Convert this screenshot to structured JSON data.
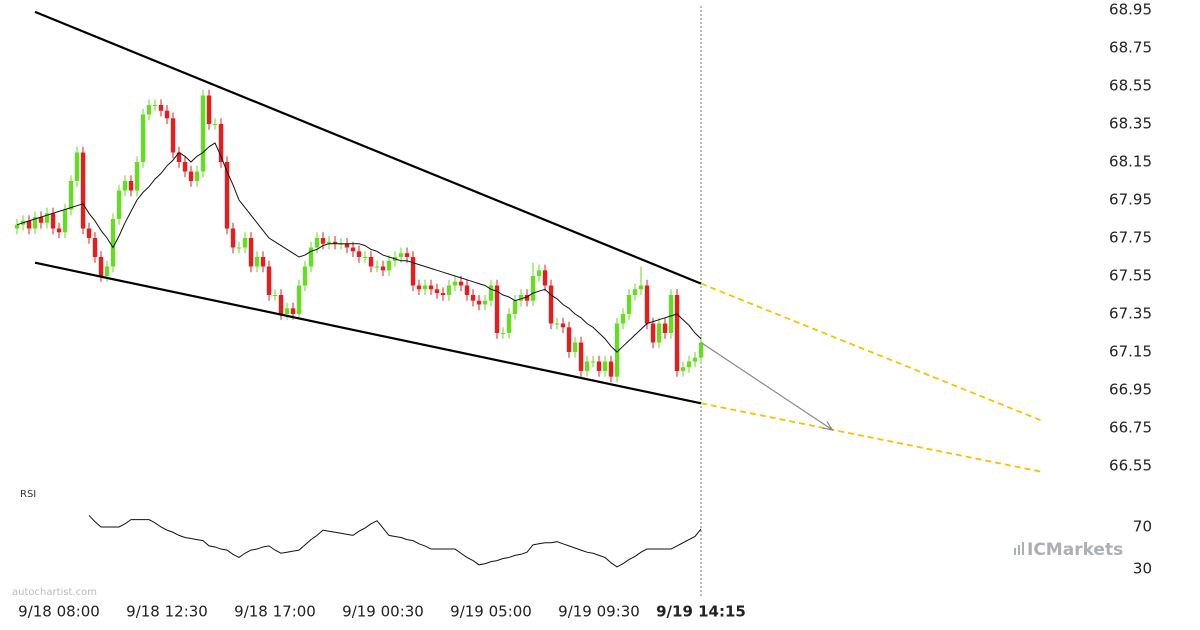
{
  "chart_data": {
    "type": "candlestick",
    "categories": [
      null,
      null,
      null,
      null,
      null,
      null,
      null,
      "9/18 08:00",
      null,
      null,
      null,
      null,
      null,
      null,
      null,
      null,
      null,
      null,
      null,
      null,
      null,
      null,
      null,
      null,
      null,
      "9/18 12:30",
      null,
      null,
      null,
      null,
      null,
      null,
      null,
      null,
      null,
      null,
      null,
      null,
      null,
      null,
      null,
      null,
      null,
      "9/18 17:00",
      null,
      null,
      null,
      null,
      null,
      null,
      null,
      null,
      null,
      null,
      null,
      null,
      null,
      null,
      null,
      null,
      null,
      "9/19 00:30",
      null,
      null,
      null,
      null,
      null,
      null,
      null,
      null,
      null,
      null,
      null,
      null,
      null,
      null,
      null,
      null,
      null,
      "9/19 05:00",
      null,
      null,
      null,
      null,
      null,
      null,
      null,
      null,
      null,
      null,
      null,
      null,
      null,
      null,
      null,
      null,
      null,
      "9/19 09:30",
      null,
      null,
      null,
      null,
      null,
      null,
      null,
      null,
      null,
      null,
      null,
      null,
      null,
      null,
      null,
      null,
      "9/19 14:15"
    ],
    "open": [
      67.8,
      67.82,
      67.84,
      67.8,
      67.86,
      67.83,
      67.88,
      67.8,
      67.78,
      67.9,
      68.05,
      68.2,
      67.8,
      67.75,
      67.65,
      67.55,
      67.6,
      67.85,
      68.0,
      68.05,
      68.0,
      68.15,
      68.4,
      68.45,
      68.45,
      68.42,
      68.38,
      68.2,
      68.15,
      68.1,
      68.05,
      68.1,
      68.5,
      68.35,
      68.35,
      68.15,
      67.8,
      67.7,
      67.7,
      67.75,
      67.6,
      67.65,
      67.6,
      67.45,
      67.45,
      67.35,
      67.38,
      67.35,
      67.5,
      67.6,
      67.7,
      67.75,
      67.72,
      67.73,
      67.72,
      67.72,
      67.7,
      67.68,
      67.65,
      67.65,
      67.6,
      67.6,
      67.58,
      67.63,
      67.65,
      67.67,
      67.65,
      67.5,
      67.48,
      67.5,
      67.48,
      67.46,
      67.45,
      67.5,
      67.52,
      67.5,
      67.45,
      67.42,
      67.4,
      67.42,
      67.5,
      67.25,
      67.25,
      67.35,
      67.42,
      67.45,
      67.42,
      67.55,
      67.58,
      67.5,
      67.3,
      67.3,
      67.28,
      67.15,
      67.2,
      67.05,
      67.1,
      67.1,
      67.05,
      67.1,
      67.02,
      67.3,
      67.35,
      67.45,
      67.48,
      67.5,
      67.3,
      67.2,
      67.3,
      67.25,
      67.45,
      67.05,
      67.07,
      67.1,
      67.12
    ],
    "high": [
      67.85,
      67.87,
      67.87,
      67.89,
      67.89,
      67.91,
      67.91,
      67.83,
      67.93,
      68.08,
      68.23,
      68.23,
      67.83,
      67.78,
      67.68,
      67.63,
      67.88,
      68.03,
      68.08,
      68.08,
      68.18,
      68.43,
      68.48,
      68.48,
      68.48,
      68.45,
      68.41,
      68.23,
      68.18,
      68.13,
      68.13,
      68.53,
      68.53,
      68.38,
      68.38,
      68.18,
      67.83,
      67.73,
      67.78,
      67.78,
      67.68,
      67.68,
      67.63,
      67.48,
      67.48,
      67.41,
      67.41,
      67.53,
      67.63,
      67.73,
      67.78,
      67.78,
      67.76,
      67.76,
      67.75,
      67.75,
      67.73,
      67.71,
      67.68,
      67.68,
      67.63,
      67.63,
      67.66,
      67.68,
      67.7,
      67.7,
      67.68,
      67.53,
      67.53,
      67.53,
      67.51,
      67.49,
      67.53,
      67.55,
      67.55,
      67.53,
      67.48,
      67.45,
      67.45,
      67.53,
      67.53,
      67.28,
      67.38,
      67.45,
      67.48,
      67.48,
      67.62,
      67.61,
      67.61,
      67.53,
      67.33,
      67.33,
      67.31,
      67.23,
      67.23,
      67.13,
      67.13,
      67.13,
      67.13,
      67.13,
      67.33,
      67.38,
      67.48,
      67.51,
      67.6,
      67.53,
      67.33,
      67.33,
      67.33,
      67.48,
      67.48,
      67.1,
      67.13,
      67.15,
      67.23
    ],
    "low": [
      67.77,
      67.79,
      67.77,
      67.77,
      67.8,
      67.8,
      67.77,
      67.75,
      67.75,
      67.87,
      68.02,
      67.77,
      67.72,
      67.62,
      67.52,
      67.52,
      67.57,
      67.82,
      67.97,
      67.97,
      67.97,
      68.12,
      68.37,
      68.42,
      68.39,
      68.35,
      68.17,
      68.12,
      68.07,
      68.02,
      68.02,
      68.07,
      68.32,
      68.32,
      68.12,
      67.77,
      67.67,
      67.67,
      67.67,
      67.57,
      67.57,
      67.57,
      67.42,
      67.42,
      67.32,
      67.32,
      67.32,
      67.32,
      67.47,
      67.57,
      67.67,
      67.69,
      67.69,
      67.69,
      67.69,
      67.67,
      67.65,
      67.62,
      67.62,
      67.57,
      67.57,
      67.55,
      67.55,
      67.6,
      67.62,
      67.62,
      67.47,
      67.45,
      67.45,
      67.45,
      67.43,
      67.42,
      67.42,
      67.47,
      67.47,
      67.42,
      67.39,
      67.37,
      67.37,
      67.39,
      67.22,
      67.22,
      67.22,
      67.32,
      67.39,
      67.39,
      67.39,
      67.52,
      67.47,
      67.27,
      67.27,
      67.25,
      67.12,
      67.12,
      67.02,
      67.02,
      67.07,
      67.02,
      67.02,
      66.99,
      66.99,
      67.27,
      67.32,
      67.42,
      67.45,
      67.27,
      67.17,
      67.17,
      67.22,
      67.22,
      67.02,
      67.02,
      67.04,
      67.07,
      67.09
    ],
    "close": [
      67.82,
      67.84,
      67.8,
      67.86,
      67.83,
      67.88,
      67.8,
      67.78,
      67.9,
      68.05,
      68.2,
      67.8,
      67.75,
      67.65,
      67.55,
      67.6,
      67.85,
      68.0,
      68.05,
      68.0,
      68.15,
      68.4,
      68.45,
      68.45,
      68.42,
      68.38,
      68.2,
      68.15,
      68.1,
      68.05,
      68.1,
      68.5,
      68.35,
      68.35,
      68.15,
      67.8,
      67.7,
      67.7,
      67.75,
      67.6,
      67.65,
      67.6,
      67.45,
      67.45,
      67.35,
      67.38,
      67.35,
      67.5,
      67.6,
      67.7,
      67.75,
      67.72,
      67.73,
      67.72,
      67.72,
      67.7,
      67.68,
      67.65,
      67.65,
      67.6,
      67.6,
      67.58,
      67.63,
      67.65,
      67.67,
      67.65,
      67.5,
      67.48,
      67.5,
      67.48,
      67.46,
      67.45,
      67.5,
      67.52,
      67.5,
      67.45,
      67.42,
      67.4,
      67.42,
      67.5,
      67.25,
      67.25,
      67.35,
      67.42,
      67.45,
      67.42,
      67.55,
      67.58,
      67.5,
      67.3,
      67.3,
      67.28,
      67.15,
      67.2,
      67.05,
      67.1,
      67.1,
      67.05,
      67.1,
      67.02,
      67.3,
      67.35,
      67.45,
      67.48,
      67.5,
      67.3,
      67.2,
      67.3,
      67.25,
      67.45,
      67.05,
      67.07,
      67.1,
      67.12,
      67.2
    ],
    "up_color": "#66dd22",
    "down_color": "#e41e1e",
    "ylim": [
      66.55,
      68.95
    ],
    "yticks": [
      68.95,
      68.75,
      68.55,
      68.35,
      68.15,
      67.95,
      67.75,
      67.55,
      67.35,
      67.15,
      66.95,
      66.75,
      66.55
    ],
    "grid": false,
    "moving_average": {
      "color": "#111111",
      "values": [
        67.82,
        67.83,
        67.84,
        67.85,
        67.86,
        67.87,
        67.88,
        67.89,
        67.9,
        67.91,
        67.92,
        67.93,
        67.88,
        67.84,
        67.79,
        67.75,
        67.7,
        67.76,
        67.83,
        67.89,
        67.95,
        67.99,
        68.02,
        68.06,
        68.09,
        68.13,
        68.16,
        68.2,
        68.18,
        68.15,
        68.18,
        68.2,
        68.23,
        68.25,
        68.18,
        68.1,
        68.03,
        67.95,
        67.91,
        67.87,
        67.83,
        67.79,
        67.75,
        67.73,
        67.71,
        67.69,
        67.67,
        67.65,
        67.66,
        67.68,
        67.69,
        67.71,
        67.72,
        67.72,
        67.72,
        67.72,
        67.72,
        67.72,
        67.71,
        67.69,
        67.68,
        67.66,
        67.65,
        67.64,
        67.63,
        67.63,
        67.62,
        67.61,
        67.6,
        67.59,
        67.58,
        67.57,
        67.56,
        67.55,
        67.54,
        67.53,
        67.52,
        67.51,
        67.5,
        67.48,
        67.47,
        67.45,
        67.44,
        67.42,
        67.43,
        67.44,
        67.46,
        67.47,
        67.48,
        67.45,
        67.43,
        67.4,
        67.38,
        67.35,
        67.33,
        67.3,
        67.28,
        67.25,
        67.22,
        67.18,
        67.15,
        67.18,
        67.21,
        67.24,
        67.27,
        67.3,
        67.31,
        67.32,
        67.33,
        67.34,
        67.35,
        67.32,
        67.29,
        67.25,
        67.22
      ]
    },
    "trendlines": [
      {
        "color": "#000000",
        "dashed": false,
        "x": [
          3,
          114
        ],
        "y": [
          68.94,
          67.51
        ]
      },
      {
        "color": "#000000",
        "dashed": false,
        "x": [
          3,
          114
        ],
        "y": [
          67.62,
          66.88
        ]
      },
      {
        "color": "#f5c400",
        "dashed": true,
        "x": [
          114,
          170.7
        ],
        "y": [
          67.51,
          66.79
        ]
      },
      {
        "color": "#f5c400",
        "dashed": true,
        "x": [
          114,
          170.7
        ],
        "y": [
          66.88,
          66.52
        ]
      }
    ],
    "arrow": {
      "color": "#888888",
      "x": [
        114,
        135.9
      ],
      "y": [
        67.2,
        66.74
      ]
    },
    "rsi": {
      "label": "RSI",
      "color": "#111111",
      "ylim": [
        10,
        90
      ],
      "yticks": [
        70,
        30
      ],
      "values": [
        null,
        null,
        null,
        null,
        null,
        null,
        null,
        null,
        null,
        null,
        null,
        null,
        81,
        75,
        70,
        70,
        70,
        70,
        73,
        77,
        77,
        77,
        77,
        74,
        70,
        67,
        65,
        62,
        60,
        59,
        58,
        57,
        52,
        51,
        49,
        48,
        44,
        41,
        45,
        48,
        49,
        51,
        52,
        48,
        45,
        46,
        47,
        48,
        53,
        58,
        62,
        67,
        66,
        65,
        64,
        63,
        62,
        66,
        69,
        73,
        76,
        69,
        62,
        61,
        60,
        58,
        57,
        54,
        52,
        49,
        49,
        49,
        49,
        49,
        45,
        41,
        38,
        34,
        35,
        37,
        38,
        40,
        41,
        43,
        44,
        46,
        53,
        54,
        55,
        55,
        56,
        54,
        52,
        50,
        48,
        46,
        45,
        43,
        41,
        36,
        32,
        35,
        39,
        42,
        46,
        49,
        49,
        49,
        49,
        49,
        52,
        55,
        58,
        61,
        68
      ]
    },
    "watermark": "autochartist.com",
    "brand": "ICMarkets"
  }
}
